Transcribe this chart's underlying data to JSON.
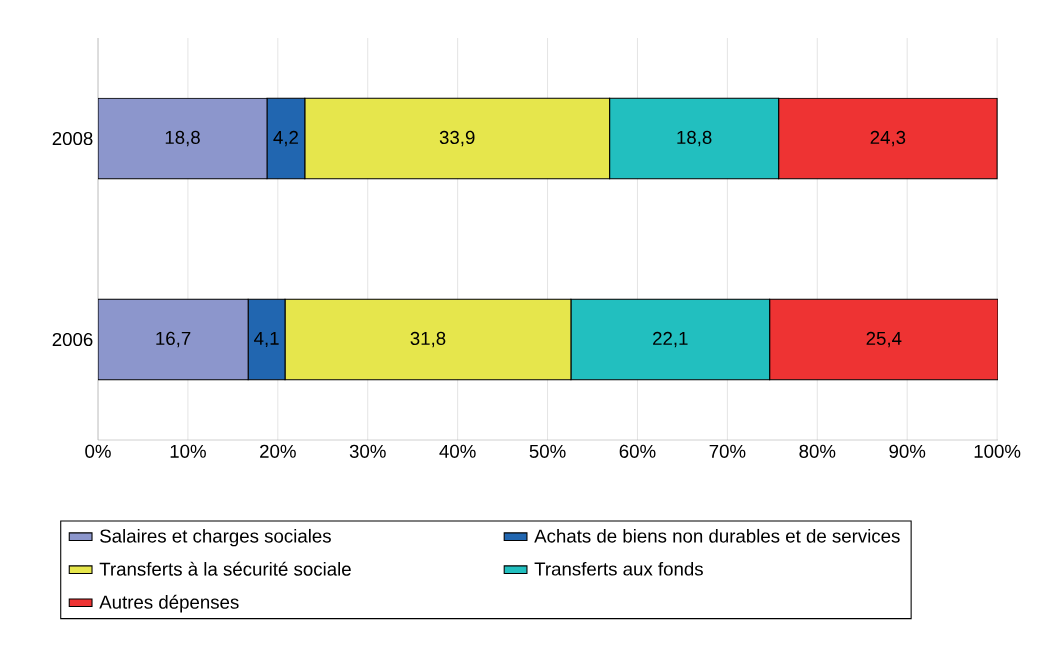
{
  "chart_data": {
    "type": "bar",
    "orientation": "horizontal",
    "stacked": true,
    "categories": [
      "2008",
      "2006"
    ],
    "series": [
      {
        "name": "Salaires et charges sociales",
        "color": "#8c96cc",
        "values": [
          18.8,
          16.7
        ],
        "value_labels": [
          "18,8",
          "16,7"
        ]
      },
      {
        "name": "Achats de biens non durables et de services",
        "color": "#2166b0",
        "values": [
          4.2,
          4.1
        ],
        "value_labels": [
          "4,2",
          "4,1"
        ]
      },
      {
        "name": "Transferts à la sécurité sociale",
        "color": "#e6e64c",
        "values": [
          33.9,
          31.8
        ],
        "value_labels": [
          "33,9",
          "31,8"
        ]
      },
      {
        "name": "Transferts aux fonds",
        "color": "#22bfbf",
        "values": [
          18.8,
          22.1
        ],
        "value_labels": [
          "18,8",
          "22,1"
        ]
      },
      {
        "name": "Autres dépenses",
        "color": "#ee3333",
        "values": [
          24.3,
          25.4
        ],
        "value_labels": [
          "24,3",
          "25,4"
        ]
      }
    ],
    "xlim": [
      0,
      100.1
    ],
    "xticks": [
      {
        "value": 0,
        "label": "0%"
      },
      {
        "value": 10,
        "label": "10%"
      },
      {
        "value": 20,
        "label": "20%"
      },
      {
        "value": 30,
        "label": "30%"
      },
      {
        "value": 40,
        "label": "40%"
      },
      {
        "value": 50,
        "label": "50%"
      },
      {
        "value": 60,
        "label": "60%"
      },
      {
        "value": 70,
        "label": "70%"
      },
      {
        "value": 80,
        "label": "80%"
      },
      {
        "value": 90,
        "label": "90%"
      },
      {
        "value": 100,
        "label": "100%"
      }
    ],
    "grid": "x",
    "legend": "bottom"
  }
}
